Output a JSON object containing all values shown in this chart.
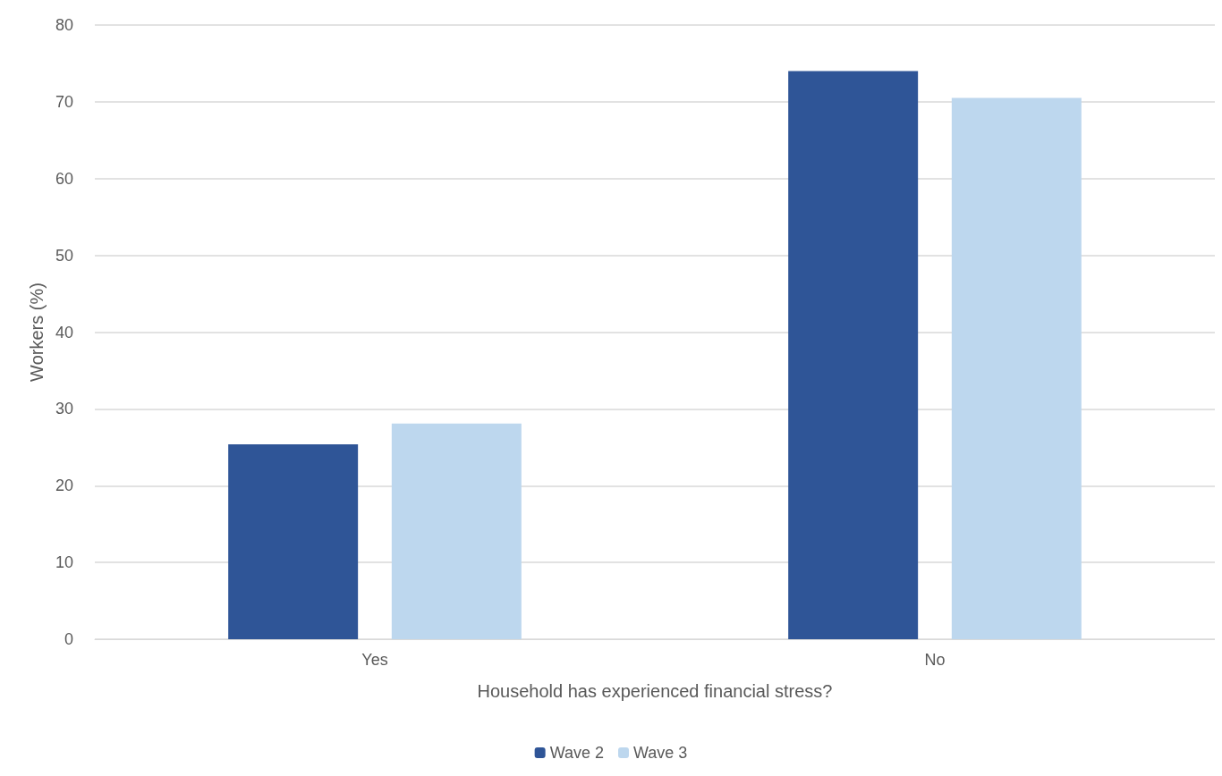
{
  "chart_data": {
    "type": "bar",
    "xlabel": "Household has experienced financial stress?",
    "ylabel": "Workers (%)",
    "categories": [
      "Yes",
      "No"
    ],
    "series": [
      {
        "name": "Wave 2",
        "color": "#2f5597",
        "values": [
          25.4,
          74.0
        ]
      },
      {
        "name": "Wave 3",
        "color": "#bdd7ee",
        "values": [
          28.1,
          70.5
        ]
      }
    ],
    "ylim": [
      0,
      80
    ],
    "yticks": [
      0,
      10,
      20,
      30,
      40,
      50,
      60,
      70,
      80
    ],
    "grid": "y",
    "legend": "bottom"
  }
}
